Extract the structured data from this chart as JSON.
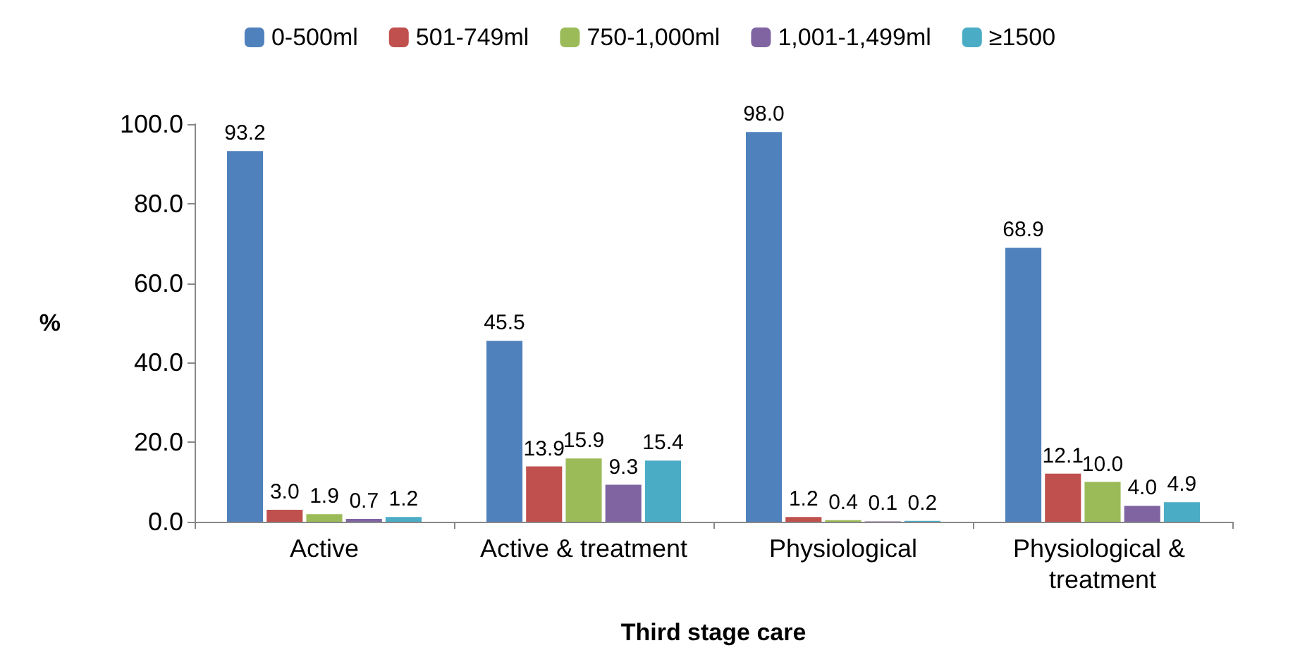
{
  "chart_data": {
    "type": "bar",
    "xlabel": "Third stage care",
    "ylabel": "%",
    "categories": [
      "Active",
      "Active & treatment",
      "Physiological",
      "Physiological & treatment"
    ],
    "series": [
      {
        "name": "0-500ml",
        "color": "#4f81bd",
        "values": [
          93.2,
          45.5,
          98.0,
          68.9
        ],
        "value_labels": [
          "93.2",
          "45.5",
          "98.0",
          "68.9"
        ]
      },
      {
        "name": "501-749ml",
        "color": "#c0504d",
        "values": [
          3.0,
          13.9,
          1.2,
          12.1
        ],
        "value_labels": [
          "3.0",
          "13.9",
          "1.2",
          "12.1"
        ]
      },
      {
        "name": "750-1,000ml",
        "color": "#9bbb59",
        "values": [
          1.9,
          15.9,
          0.4,
          10.0
        ],
        "value_labels": [
          "1.9",
          "15.9",
          "0.4",
          "10.0"
        ]
      },
      {
        "name": "1,001-1,499ml",
        "color": "#8064a2",
        "values": [
          0.7,
          9.3,
          0.1,
          4.0
        ],
        "value_labels": [
          "0.7",
          "9.3",
          "0.1",
          "4.0"
        ]
      },
      {
        "name": "≥1500",
        "color": "#4bacc6",
        "values": [
          1.2,
          15.4,
          0.2,
          4.9
        ],
        "value_labels": [
          "1.2",
          "15.4",
          "0.2",
          "4.9"
        ]
      }
    ],
    "ylim": [
      0,
      100
    ],
    "yticks": [
      {
        "value": 0,
        "label": "0.0"
      },
      {
        "value": 20,
        "label": "20.0"
      },
      {
        "value": 40,
        "label": "40.0"
      },
      {
        "value": 60,
        "label": "60.0"
      },
      {
        "value": 80,
        "label": "80.0"
      },
      {
        "value": 100,
        "label": "100.0"
      }
    ],
    "legend": "top",
    "grid": false
  }
}
